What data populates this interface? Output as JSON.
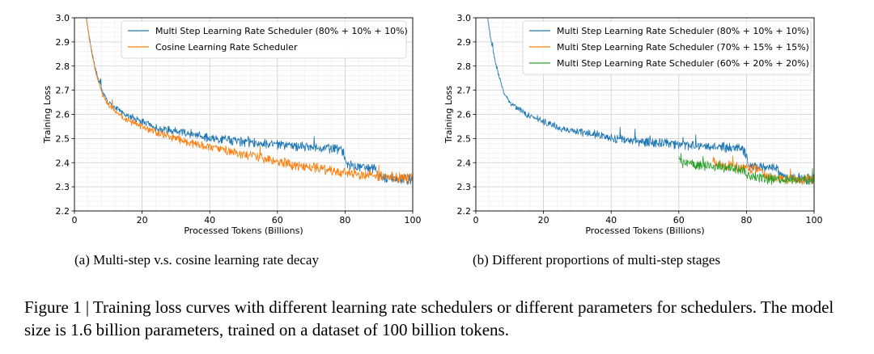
{
  "chart_data": [
    {
      "type": "line",
      "xlabel": "Processed Tokens (Billions)",
      "ylabel": "Training Loss",
      "xlim": [
        0,
        100
      ],
      "ylim": [
        2.2,
        3.0
      ],
      "xticks": [
        0,
        20,
        40,
        60,
        80,
        100
      ],
      "yticks": [
        2.2,
        2.3,
        2.4,
        2.5,
        2.6,
        2.7,
        2.8,
        2.9,
        3.0
      ],
      "grid": true,
      "legend_position": "top-right",
      "series": [
        {
          "name": "Multi Step Learning Rate Scheduler (80% + 10% + 10%)",
          "color": "#1f77b4",
          "x": [
            3,
            4,
            5,
            6,
            8,
            10,
            15,
            20,
            25,
            30,
            35,
            40,
            45,
            50,
            55,
            60,
            65,
            70,
            75,
            79,
            80,
            81,
            85,
            89,
            90,
            91,
            95,
            100
          ],
          "y": [
            3.05,
            2.95,
            2.87,
            2.8,
            2.7,
            2.65,
            2.6,
            2.57,
            2.54,
            2.53,
            2.52,
            2.5,
            2.495,
            2.485,
            2.48,
            2.475,
            2.47,
            2.465,
            2.46,
            2.455,
            2.42,
            2.39,
            2.38,
            2.375,
            2.35,
            2.34,
            2.335,
            2.33
          ]
        },
        {
          "name": "Cosine Learning Rate Scheduler",
          "color": "#ff7f0e",
          "x": [
            3,
            4,
            5,
            6,
            8,
            10,
            15,
            20,
            25,
            30,
            35,
            40,
            45,
            50,
            55,
            60,
            65,
            70,
            75,
            80,
            85,
            90,
            95,
            100
          ],
          "y": [
            3.05,
            2.95,
            2.87,
            2.79,
            2.69,
            2.64,
            2.58,
            2.55,
            2.52,
            2.5,
            2.48,
            2.465,
            2.45,
            2.435,
            2.42,
            2.405,
            2.39,
            2.38,
            2.37,
            2.36,
            2.35,
            2.345,
            2.34,
            2.335
          ]
        }
      ]
    },
    {
      "type": "line",
      "xlabel": "Processed Tokens (Billions)",
      "ylabel": "Training Loss",
      "xlim": [
        0,
        100
      ],
      "ylim": [
        2.2,
        3.0
      ],
      "xticks": [
        0,
        20,
        40,
        60,
        80,
        100
      ],
      "yticks": [
        2.2,
        2.3,
        2.4,
        2.5,
        2.6,
        2.7,
        2.8,
        2.9,
        3.0
      ],
      "grid": true,
      "legend_position": "top-right",
      "series": [
        {
          "name": "Multi Step Learning Rate Scheduler (80% + 10% + 10%)",
          "color": "#1f77b4",
          "x": [
            3,
            4,
            5,
            6,
            8,
            10,
            15,
            20,
            25,
            30,
            35,
            40,
            45,
            50,
            55,
            60,
            65,
            70,
            75,
            79,
            80,
            81,
            85,
            89,
            90,
            91,
            95,
            100
          ],
          "y": [
            3.05,
            2.95,
            2.87,
            2.8,
            2.7,
            2.65,
            2.6,
            2.57,
            2.54,
            2.53,
            2.52,
            2.5,
            2.495,
            2.485,
            2.48,
            2.475,
            2.47,
            2.465,
            2.46,
            2.455,
            2.42,
            2.39,
            2.38,
            2.375,
            2.35,
            2.34,
            2.335,
            2.33
          ]
        },
        {
          "name": "Multi Step Learning Rate Scheduler (70% + 15% + 15%)",
          "color": "#ff7f0e",
          "x": [
            70,
            71,
            75,
            80,
            84,
            85,
            86,
            90,
            95,
            100
          ],
          "y": [
            2.42,
            2.39,
            2.385,
            2.38,
            2.375,
            2.35,
            2.34,
            2.335,
            2.33,
            2.33
          ]
        },
        {
          "name": "Multi Step Learning Rate Scheduler (60% + 20% + 20%)",
          "color": "#2ca02c",
          "x": [
            60,
            61,
            65,
            70,
            75,
            79,
            80,
            81,
            85,
            90,
            95,
            100
          ],
          "y": [
            2.43,
            2.4,
            2.39,
            2.385,
            2.38,
            2.37,
            2.35,
            2.34,
            2.335,
            2.33,
            2.33,
            2.325
          ]
        }
      ]
    }
  ],
  "subcaptions": {
    "a": "(a)  Multi-step v.s. cosine learning rate decay",
    "b": "(b)  Different proportions of multi-step stages"
  },
  "caption": "Figure 1 | Training loss curves with different learning rate schedulers or different parameters for schedulers. The model size is 1.6 billion parameters, trained on a dataset of 100 billion tokens."
}
